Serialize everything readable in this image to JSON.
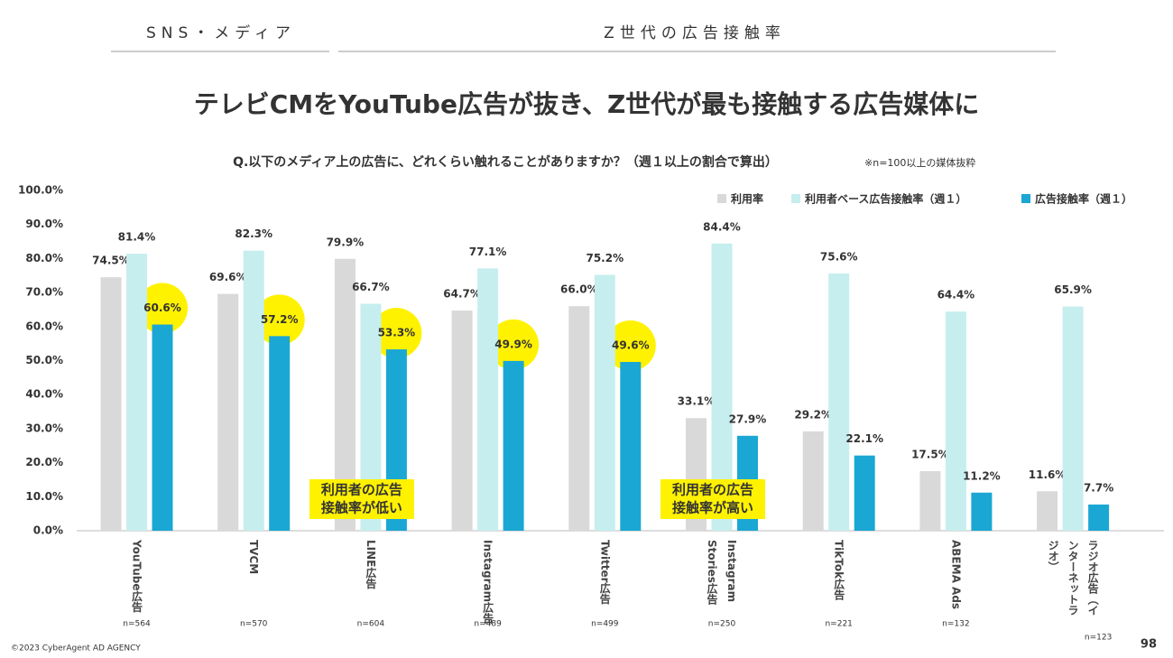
{
  "header": {
    "section": "SNS・メディア",
    "topic": "Z世代の広告接触率"
  },
  "chart_data": {
    "type": "bar",
    "title": "テレビCMをYouTube広告が抜き、Z世代が最も接触する広告媒体に",
    "subtitle": "Q.以下のメディア上の広告に、どれくらい触れることがありますか？（週１以上の割合で算出）",
    "note": "※n=100以上の媒体抜粋",
    "categories": [
      "YouTube広告",
      "TVCM",
      "LINE広告",
      "Instagram広告",
      "Twitter広告",
      "Instagram Stories広告",
      "TikTok広告",
      "ABEMA Ads",
      "ラジオ広告（インターネットラジオ）"
    ],
    "n_labels": [
      "n=564",
      "n=570",
      "n=604",
      "n=489",
      "n=499",
      "n=250",
      "n=221",
      "n=132",
      "n=123"
    ],
    "series": [
      {
        "name": "利用率",
        "color": "#d9d9d9",
        "values": [
          74.5,
          69.6,
          79.9,
          64.7,
          66.0,
          33.1,
          29.2,
          17.5,
          11.6
        ],
        "value_labels": [
          "74.5%",
          "69.6%",
          "79.9%",
          "64.7%",
          "66.0%",
          "33.1%",
          "29.2%",
          "17.5%",
          "11.6%"
        ]
      },
      {
        "name": "利用者ベース広告接触率（週１）",
        "color": "#c6eeee",
        "values": [
          81.4,
          82.3,
          66.7,
          77.1,
          75.2,
          84.4,
          75.6,
          64.4,
          65.9
        ],
        "value_labels": [
          "81.4%",
          "82.3%",
          "66.7%",
          "77.1%",
          "75.2%",
          "84.4%",
          "75.6%",
          "64.4%",
          "65.9%"
        ]
      },
      {
        "name": "広告接触率（週１）",
        "color": "#1ba7d3",
        "values": [
          60.6,
          57.2,
          53.3,
          49.9,
          49.6,
          27.9,
          22.1,
          11.2,
          7.7
        ],
        "value_labels": [
          "60.6%",
          "57.2%",
          "53.3%",
          "49.9%",
          "49.6%",
          "27.9%",
          "22.1%",
          "11.2%",
          "7.7%"
        ]
      }
    ],
    "highlight": [
      0,
      1,
      2,
      3,
      4
    ],
    "highlight_color": "#fff200",
    "ylim": [
      0,
      100
    ],
    "yticks": [
      {
        "value": 0,
        "label": "0.0%"
      },
      {
        "value": 10,
        "label": "10.0%"
      },
      {
        "value": 20,
        "label": "20.0%"
      },
      {
        "value": 30,
        "label": "30.0%"
      },
      {
        "value": 40,
        "label": "40.0%"
      },
      {
        "value": 50,
        "label": "50.0%"
      },
      {
        "value": 60,
        "label": "60.0%"
      },
      {
        "value": 70,
        "label": "70.0%"
      },
      {
        "value": 80,
        "label": "80.0%"
      },
      {
        "value": 90,
        "label": "90.0%"
      },
      {
        "value": 100,
        "label": "100.0%"
      }
    ],
    "legend": "top-right",
    "annotations": [
      {
        "lines": [
          "利用者の広告",
          "接触率が低い"
        ],
        "category": 2
      },
      {
        "lines": [
          "利用者の広告",
          "接触率が高い"
        ],
        "category": 5
      }
    ]
  },
  "footer": {
    "copyright": "©2023 CyberAgent AD AGENCY",
    "page": "98"
  }
}
